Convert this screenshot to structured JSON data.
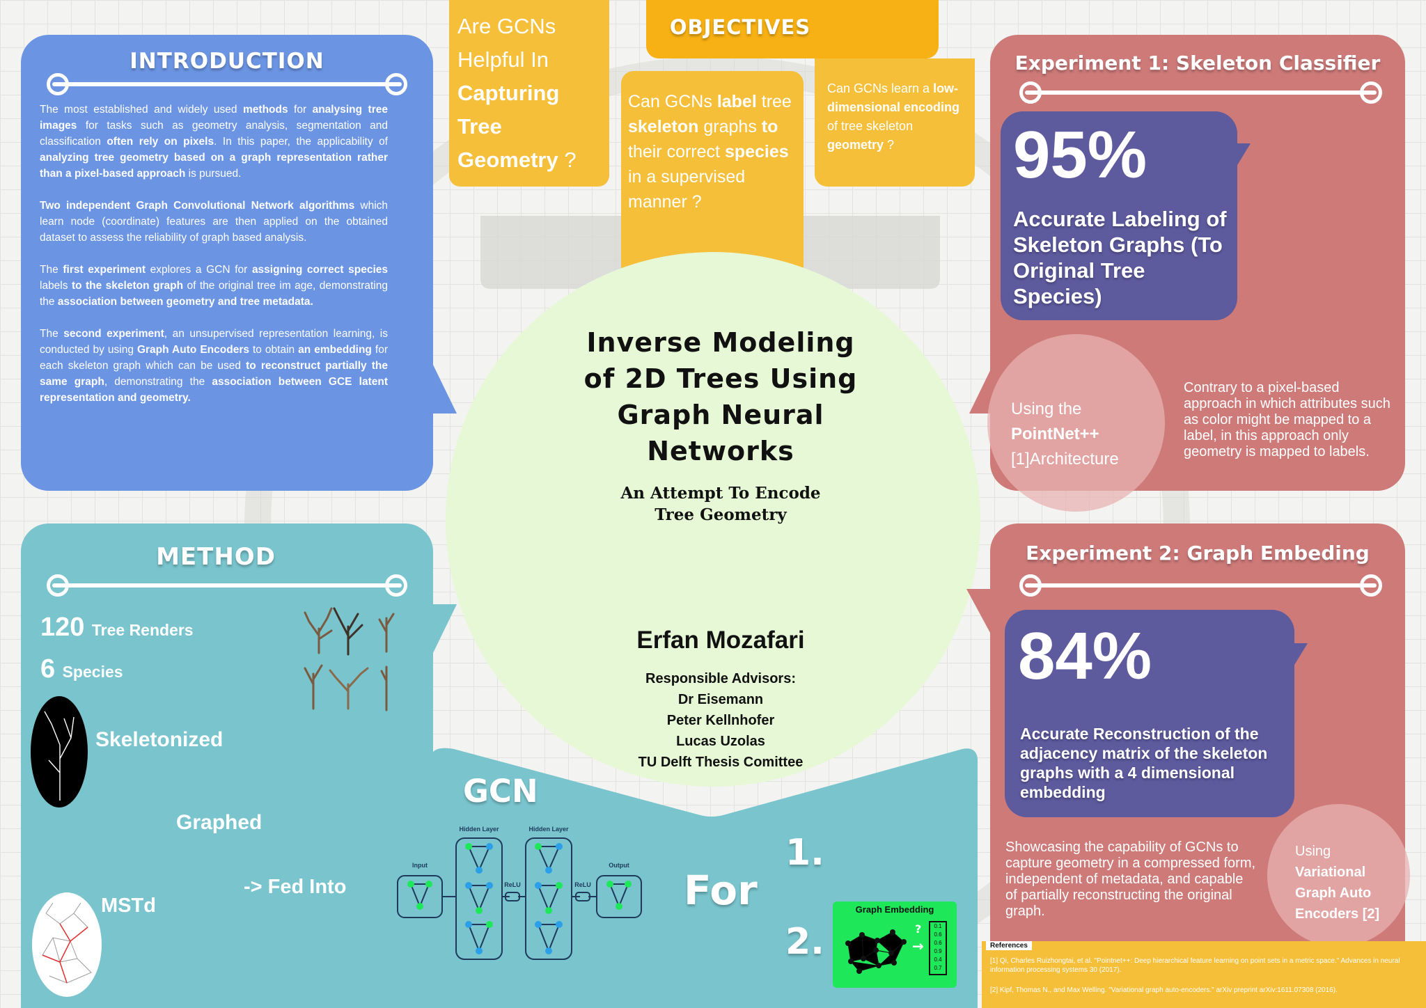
{
  "colors": {
    "intro_blue": "#6b94e3",
    "method_teal": "#79c4cd",
    "objectives_yellow": "#f6bf3a",
    "objectives_header": "#f7b114",
    "experiment_red": "#cd7a79",
    "stat_purple": "#5d5a9e",
    "center_green": "#e6f8d6",
    "embedding_green": "#1ee85a"
  },
  "introduction": {
    "title": "INTRODUCTION",
    "p1_pre": "The most established and widely used ",
    "p1_b1": "methods",
    "p1_t2": " for ",
    "p1_b2": "analysing tree images",
    "p1_t3": " for tasks such as geometry analysis, segmentation and classification ",
    "p1_b3": "often rely on pixels",
    "p1_t4": ". In this paper, the applicability of ",
    "p1_b4": "analyzing tree geometry based on a graph representation rather than a pixel-based approach",
    "p1_t5": " is pursued.",
    "p2_b1": "Two independent Graph Convolutional Network algorithms",
    "p2_t1": " which learn node (coordinate) features are then applied on the obtained dataset to assess the reliability of graph based analysis.",
    "p3_t1": "The ",
    "p3_b1": "first experiment",
    "p3_t2": " explores a GCN for ",
    "p3_b2": "assigning correct species",
    "p3_t3": " labels ",
    "p3_b3": "to the skeleton graph",
    "p3_t4": " of the original tree im age, demonstrating the ",
    "p3_b4": "association between geometry and tree metadata.",
    "p4_t1": "The ",
    "p4_b1": "second experiment",
    "p4_t2": ", an unsupervised representation learning, is conducted by using ",
    "p4_b2": "Graph Auto Encoders",
    "p4_t3": " to obtain ",
    "p4_b3": "an embedding",
    "p4_t4": " for each skeleton graph which can be used ",
    "p4_b4": "to reconstruct partially the same graph",
    "p4_t5": ", demonstrating the ",
    "p4_b5": "association between GCE latent representation and geometry."
  },
  "question_box": {
    "line1": "Are GCNs",
    "line2": "Helpful In",
    "line3": "Capturing",
    "line4": "Tree",
    "line5": "Geometry",
    "qmark": " ?"
  },
  "objectives": {
    "title": "OBJECTIVES",
    "q1_t1": "Can GCNs ",
    "q1_b1": "label",
    "q1_t2": " tree ",
    "q1_b2": "skeleton",
    "q1_t3": " graphs ",
    "q1_b3": "to",
    "q1_t4": " their correct ",
    "q1_b4": "species",
    "q1_t5": " in a supervised manner ?",
    "q2_t1": "Can GCNs learn a ",
    "q2_b1": "low-dimensional encoding",
    "q2_t2": " of tree skeleton ",
    "q2_b2": "geometry",
    "q2_t3": "  ?"
  },
  "center": {
    "title": "Inverse Modeling of 2D Trees Using Graph Neural Networks",
    "subtitle_line1": "An Attempt To Encode",
    "subtitle_line2": "Tree Geometry",
    "author": "Erfan Mozafari",
    "advisors_label": "Responsible Advisors:",
    "advisor1": "Dr Eisemann",
    "advisor2": "Peter Kellnhofer",
    "advisor3": "Lucas Uzolas",
    "committee": "TU Delft Thesis Comittee"
  },
  "experiment1": {
    "title": "Experiment 1: Skeleton Classifier",
    "stat": "95%",
    "stat_label": "Accurate Labeling of Skeleton Graphs (To Original Tree Species)",
    "using_pre": "Using the",
    "using_bold": "PointNet++",
    "using_post": "[1]Architecture",
    "note": "Contrary to a pixel-based approach in which attributes such as color might be mapped to a label, in this approach only geometry is mapped to labels."
  },
  "experiment2": {
    "title": "Experiment 2: Graph Embeding",
    "stat": "84%",
    "stat_label": "Accurate Reconstruction of the adjacency matrix of the skeleton graphs with a 4 dimensional embedding",
    "note": "Showcasing the capability of GCNs to capture geometry in a compressed form, independent of metadata, and capable of partially reconstructing the original graph.",
    "using_pre": "Using",
    "using_bold": "Variational Graph Auto Encoders [2]"
  },
  "method": {
    "title": "METHOD",
    "count1": "120",
    "count1_label": "Tree Renders",
    "count2": "6",
    "count2_label": "Species",
    "step1": "Skeletonized",
    "step2": "Graphed",
    "step3": "MSTd",
    "fed_into": "-> Fed Into"
  },
  "gcn": {
    "title": "GCN",
    "for_label": "For",
    "item1": "1.",
    "item2": "2.",
    "diagram": {
      "input": "Input",
      "hidden1": "Hidden Layer",
      "hidden2": "Hidden Layer",
      "relu1": "ReLU",
      "relu2": "ReLU",
      "output": "Output"
    },
    "embedding_title": "Graph Embedding",
    "embedding_values": [
      "0.1",
      "0.6",
      "0.6",
      "0.9",
      "0.4",
      "0.7"
    ]
  },
  "references": {
    "title": "References",
    "ref1": "[1] Qi, Charles Ruizhongtai, et al. \"Pointnet++: Deep hierarchical feature learning on point sets in a metric space.\" Advances in neural information processing systems 30 (2017).",
    "ref2": "[2] Kipf, Thomas N., and Max Welling. \"Variational graph auto-encoders.\" arXiv preprint arXiv:1611.07308 (2016)."
  }
}
